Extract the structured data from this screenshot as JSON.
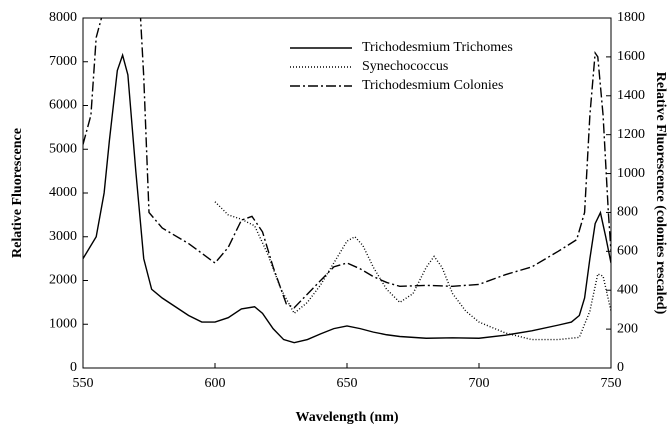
{
  "chart_data": {
    "type": "line",
    "x_label": "Wavelength (nm)",
    "y_label": "Relative Fluorescence",
    "y2_label": "Relative Fluorescence (colonies rescaled)",
    "xlim": [
      550,
      750
    ],
    "xticks": [
      550,
      600,
      650,
      700,
      750
    ],
    "ylim": [
      0,
      8000
    ],
    "yticks": [
      0,
      1000,
      2000,
      3000,
      4000,
      5000,
      6000,
      7000,
      8000
    ],
    "y2lim": [
      0,
      1800
    ],
    "y2ticks": [
      0,
      200,
      400,
      600,
      800,
      1000,
      1200,
      1400,
      1600,
      1800
    ],
    "legend": "upper right",
    "series": [
      {
        "name": "Trichodesmium Trichomes",
        "color": "#000000",
        "dash": "solid",
        "axis": "y",
        "x": [
          550,
          555,
          558,
          560,
          563,
          565,
          567,
          570,
          573,
          576,
          580,
          585,
          590,
          595,
          600,
          605,
          610,
          615,
          618,
          622,
          626,
          630,
          635,
          640,
          645,
          650,
          655,
          660,
          665,
          670,
          680,
          690,
          700,
          710,
          720,
          730,
          735,
          738,
          740,
          742,
          744,
          746,
          748,
          750
        ],
        "values": [
          2500,
          3000,
          4000,
          5200,
          6800,
          7150,
          6700,
          4500,
          2500,
          1800,
          1600,
          1400,
          1200,
          1050,
          1050,
          1150,
          1350,
          1400,
          1250,
          900,
          650,
          580,
          650,
          780,
          900,
          960,
          900,
          820,
          760,
          720,
          680,
          690,
          680,
          750,
          850,
          980,
          1050,
          1200,
          1600,
          2500,
          3300,
          3550,
          3000,
          2400
        ]
      },
      {
        "name": "Synechococcus",
        "color": "#000000",
        "dash": "dotted",
        "axis": "y",
        "x": [
          600,
          605,
          610,
          615,
          620,
          625,
          630,
          635,
          640,
          645,
          650,
          653,
          656,
          660,
          665,
          670,
          675,
          680,
          683,
          686,
          690,
          695,
          700,
          710,
          720,
          730,
          738,
          742,
          745,
          747,
          750
        ],
        "values": [
          3800,
          3500,
          3400,
          3250,
          2600,
          1800,
          1250,
          1500,
          1900,
          2400,
          2900,
          3000,
          2800,
          2300,
          1800,
          1500,
          1700,
          2300,
          2550,
          2300,
          1700,
          1300,
          1050,
          800,
          650,
          650,
          700,
          1300,
          2150,
          2100,
          1300
        ]
      },
      {
        "name": "Trichodesmium Colonies",
        "color": "#000000",
        "dash": "dashdot",
        "axis": "y2",
        "x": [
          550,
          553,
          555,
          557,
          558,
          571,
          573,
          575,
          580,
          590,
          600,
          605,
          610,
          614,
          618,
          622,
          627,
          630,
          635,
          640,
          645,
          650,
          655,
          660,
          665,
          670,
          680,
          690,
          700,
          710,
          720,
          730,
          737,
          740,
          742,
          744,
          745,
          747,
          749,
          750
        ],
        "values": [
          1150,
          1300,
          1700,
          1800,
          2000,
          2000,
          1500,
          800,
          720,
          640,
          540,
          620,
          760,
          780,
          700,
          520,
          330,
          310,
          380,
          450,
          520,
          540,
          510,
          470,
          440,
          420,
          425,
          420,
          430,
          480,
          520,
          600,
          660,
          800,
          1300,
          1620,
          1600,
          1300,
          800,
          600
        ]
      }
    ]
  }
}
